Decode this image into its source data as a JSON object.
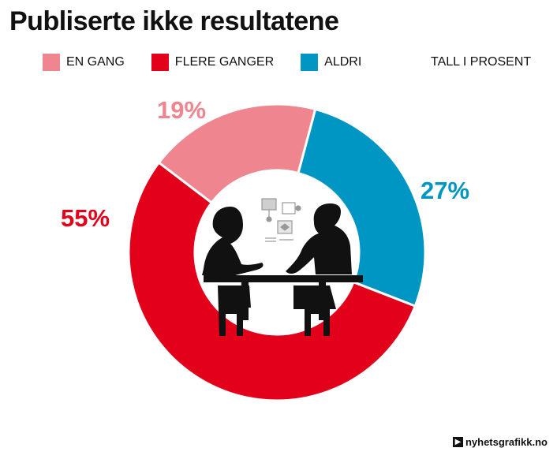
{
  "chart_data": {
    "type": "pie",
    "title": "Publiserte ikke resultatene",
    "units": "TALL I PROSENT",
    "categories": [
      "EN GANG",
      "FLERE GANGER",
      "ALDRI"
    ],
    "values": [
      19,
      55,
      27
    ],
    "labels": [
      "19%",
      "55%",
      "27%"
    ],
    "colors": [
      "#ef858e",
      "#e3001b",
      "#0096c3"
    ]
  },
  "footer": {
    "brand": "nyhetsgrafikk.no"
  },
  "icons": {
    "center": "meeting-illustration-icon",
    "brand": "brand-logo-icon"
  }
}
